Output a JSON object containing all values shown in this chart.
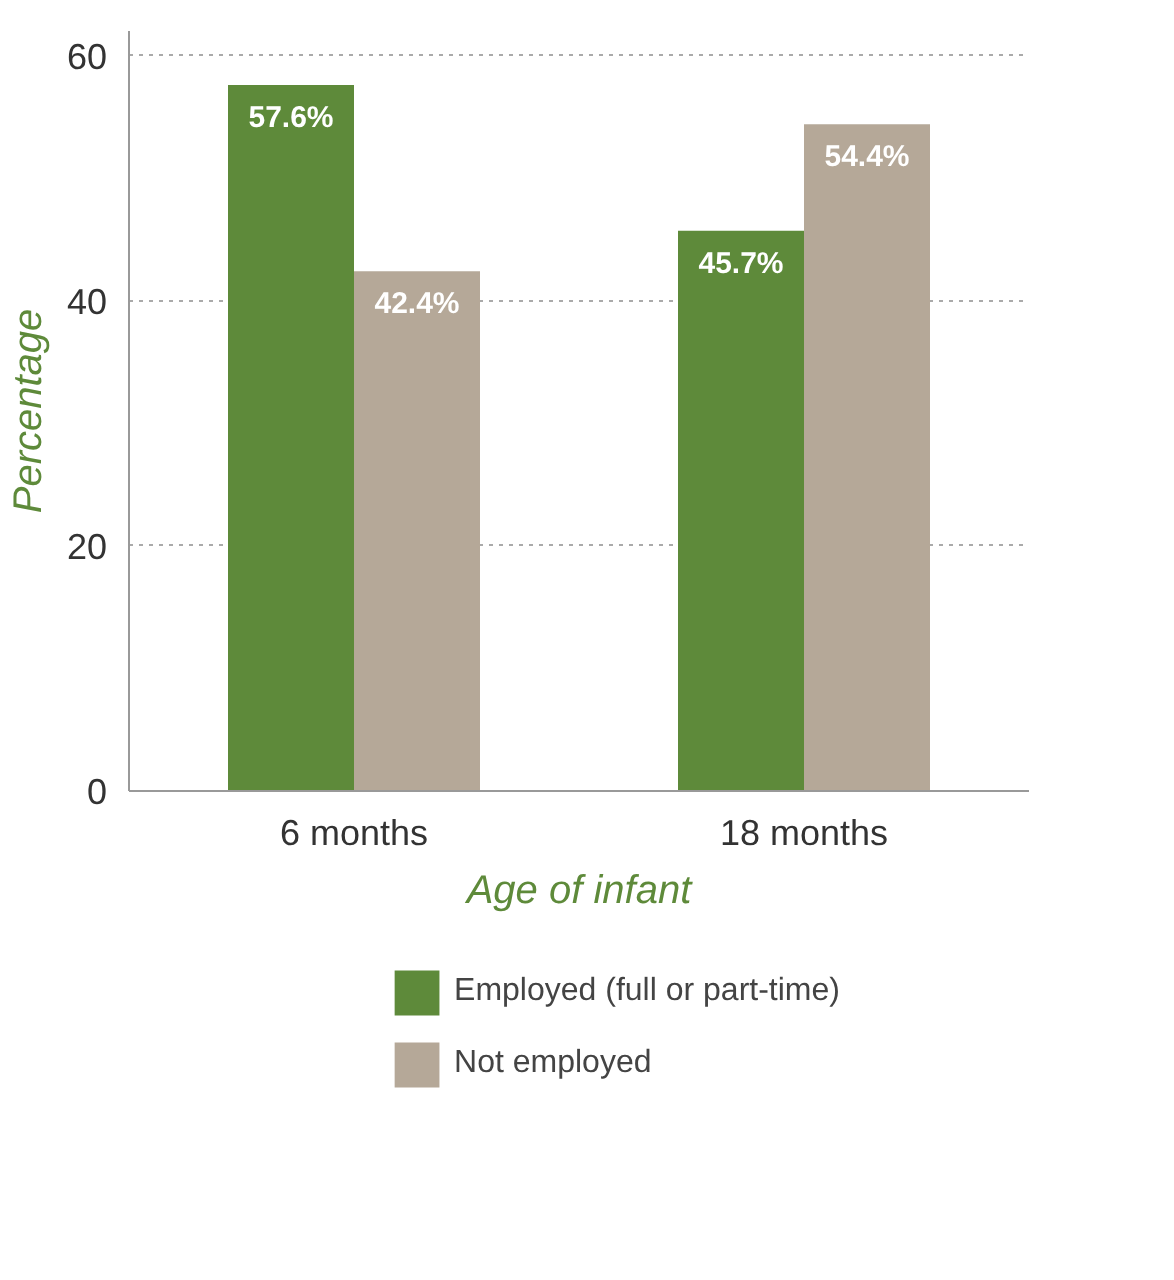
{
  "chart_data": {
    "type": "bar",
    "xlabel": "Age of infant",
    "ylabel": "Percentage",
    "categories": [
      "6 months",
      "18 months"
    ],
    "series": [
      {
        "name": "Employed (full or part-time)",
        "color": "#5e8a3a",
        "values": [
          57.6,
          45.7
        ],
        "value_labels": [
          "57.6%",
          "45.7%"
        ]
      },
      {
        "name": "Not employed",
        "color": "#b5a898",
        "values": [
          42.4,
          54.4
        ],
        "value_labels": [
          "42.4%",
          "54.4%"
        ]
      }
    ],
    "ylim": [
      0,
      62
    ],
    "yticks": [
      0,
      20,
      40,
      60
    ],
    "grid": "y",
    "legend": "bottom"
  }
}
